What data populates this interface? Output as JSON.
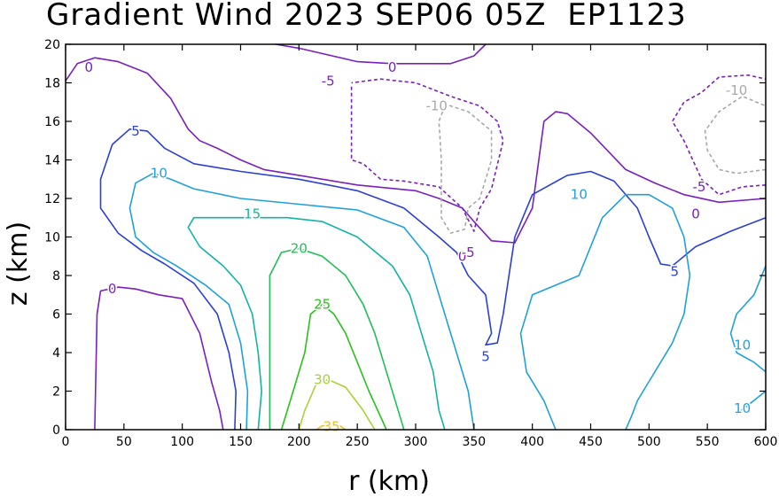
{
  "chart_data": {
    "type": "contour",
    "title": "Gradient Wind 2023 SEP06 05Z  EP1123",
    "xlabel": "r (km)",
    "ylabel": "z (km)",
    "xlim": [
      0,
      600
    ],
    "ylim": [
      0,
      20
    ],
    "x_ticks": [
      0,
      50,
      100,
      150,
      200,
      250,
      300,
      350,
      400,
      450,
      500,
      550,
      600
    ],
    "y_ticks": [
      0,
      2,
      4,
      6,
      8,
      10,
      12,
      14,
      16,
      18,
      20
    ],
    "grid": false,
    "contour_levels": [
      -10,
      -5,
      0,
      5,
      10,
      15,
      20,
      25,
      30,
      35
    ],
    "contours": [
      {
        "level": "0",
        "color": "#7a1fc0",
        "dashed": false,
        "points": [
          [
            0,
            18.1
          ],
          [
            10,
            19
          ],
          [
            25,
            19.3
          ],
          [
            45,
            19.1
          ],
          [
            70,
            18.5
          ],
          [
            90,
            17.2
          ],
          [
            105,
            15.6
          ],
          [
            115,
            15
          ],
          [
            130,
            14.6
          ],
          [
            150,
            14
          ],
          [
            170,
            13.5
          ],
          [
            200,
            13.2
          ],
          [
            250,
            12.7
          ],
          [
            300,
            12.4
          ],
          [
            320,
            12
          ],
          [
            340,
            11.5
          ],
          [
            350,
            10.8
          ],
          [
            365,
            9.8
          ],
          [
            385,
            9.7
          ],
          [
            400,
            11.5
          ],
          [
            410,
            16
          ],
          [
            420,
            16.5
          ],
          [
            430,
            16.4
          ],
          [
            450,
            15.4
          ],
          [
            480,
            13.5
          ],
          [
            505,
            12.8
          ],
          [
            530,
            12.2
          ],
          [
            560,
            11.8
          ],
          [
            600,
            12
          ]
        ]
      },
      {
        "level": "0",
        "color": "#7a1fc0",
        "dashed": false,
        "points": [
          [
            180,
            20
          ],
          [
            200,
            19.8
          ],
          [
            250,
            19.1
          ],
          [
            280,
            19
          ],
          [
            330,
            19
          ],
          [
            350,
            19.4
          ],
          [
            360,
            20
          ]
        ]
      },
      {
        "level": "0",
        "color": "#7a1fc0",
        "dashed": false,
        "points": [
          [
            25,
            0
          ],
          [
            26,
            3
          ],
          [
            27,
            6
          ],
          [
            30,
            7.2
          ],
          [
            45,
            7.4
          ],
          [
            60,
            7.3
          ],
          [
            80,
            7
          ],
          [
            100,
            6.8
          ],
          [
            115,
            5
          ],
          [
            125,
            2.5
          ],
          [
            132,
            1
          ],
          [
            135,
            0
          ]
        ]
      },
      {
        "level": "-5",
        "color": "#7a1fc0",
        "dashed": true,
        "points": [
          [
            245,
            17.8
          ],
          [
            245,
            14
          ],
          [
            255,
            13.8
          ],
          [
            270,
            13
          ],
          [
            290,
            12.9
          ],
          [
            320,
            12.6
          ],
          [
            340,
            11.5
          ],
          [
            350,
            10.3
          ],
          [
            355,
            11.5
          ],
          [
            365,
            12.5
          ],
          [
            375,
            15
          ],
          [
            370,
            16
          ],
          [
            355,
            16.8
          ],
          [
            330,
            17.3
          ],
          [
            300,
            18
          ],
          [
            270,
            18.2
          ],
          [
            245,
            18
          ]
        ]
      },
      {
        "level": "-5",
        "color": "#7a1fc0",
        "dashed": true,
        "points": [
          [
            600,
            12.7
          ],
          [
            580,
            12.6
          ],
          [
            560,
            12.2
          ],
          [
            545,
            13
          ],
          [
            530,
            15
          ],
          [
            520,
            16
          ],
          [
            530,
            17
          ],
          [
            545,
            17.5
          ],
          [
            560,
            18.3
          ],
          [
            585,
            18.4
          ],
          [
            600,
            18.2
          ]
        ]
      },
      {
        "level": "-10",
        "color": "#a8a8a8",
        "dashed": true,
        "points": [
          [
            325,
            16.8
          ],
          [
            320,
            16
          ],
          [
            322,
            14
          ],
          [
            322,
            11
          ],
          [
            330,
            10.2
          ],
          [
            342,
            10.4
          ],
          [
            345,
            11.5
          ],
          [
            355,
            12
          ],
          [
            365,
            14
          ],
          [
            365,
            15.5
          ],
          [
            345,
            16.5
          ],
          [
            325,
            16.9
          ]
        ]
      },
      {
        "level": "-10",
        "color": "#a8a8a8",
        "dashed": true,
        "points": [
          [
            600,
            13.5
          ],
          [
            575,
            13.3
          ],
          [
            560,
            13.5
          ],
          [
            550,
            14.5
          ],
          [
            548,
            15.5
          ],
          [
            560,
            16.5
          ],
          [
            580,
            17.3
          ],
          [
            600,
            16.8
          ]
        ]
      },
      {
        "level": "5",
        "color": "#2a3fd6",
        "dashed": false,
        "points": [
          [
            145,
            0
          ],
          [
            146,
            2
          ],
          [
            140,
            4
          ],
          [
            130,
            6
          ],
          [
            110,
            7.6
          ],
          [
            85,
            8.6
          ],
          [
            65,
            9.3
          ],
          [
            45,
            10.2
          ],
          [
            30,
            11.5
          ],
          [
            30,
            13
          ],
          [
            40,
            14.8
          ],
          [
            55,
            15.6
          ],
          [
            70,
            15.5
          ],
          [
            85,
            14.6
          ],
          [
            110,
            13.8
          ],
          [
            150,
            13.4
          ],
          [
            200,
            13
          ],
          [
            250,
            12.4
          ],
          [
            290,
            11.5
          ],
          [
            320,
            10
          ],
          [
            335,
            9.2
          ],
          [
            345,
            8
          ],
          [
            360,
            7
          ],
          [
            365,
            5
          ],
          [
            360,
            4.4
          ],
          [
            370,
            4.5
          ],
          [
            375,
            6
          ],
          [
            380,
            8
          ],
          [
            385,
            10
          ],
          [
            400,
            12.2
          ],
          [
            430,
            13.2
          ],
          [
            450,
            13.4
          ],
          [
            470,
            12.9
          ],
          [
            490,
            11.5
          ],
          [
            500,
            10
          ],
          [
            510,
            8.6
          ],
          [
            520,
            8.5
          ],
          [
            540,
            9.5
          ],
          [
            570,
            10.3
          ],
          [
            600,
            11
          ]
        ]
      },
      {
        "level": "10",
        "color": "#1fa0de",
        "dashed": false,
        "points": [
          [
            155,
            0
          ],
          [
            156,
            2
          ],
          [
            150,
            4.5
          ],
          [
            140,
            6.5
          ],
          [
            120,
            7.5
          ],
          [
            95,
            8.5
          ],
          [
            75,
            9.2
          ],
          [
            60,
            10
          ],
          [
            55,
            11.5
          ],
          [
            60,
            12.8
          ],
          [
            75,
            13.3
          ],
          [
            90,
            13
          ],
          [
            110,
            12.5
          ],
          [
            150,
            12
          ],
          [
            200,
            11.7
          ],
          [
            250,
            11.4
          ],
          [
            290,
            10.5
          ],
          [
            310,
            9
          ],
          [
            320,
            7
          ],
          [
            330,
            5
          ],
          [
            345,
            2
          ],
          [
            350,
            0
          ]
        ]
      },
      {
        "level": "10",
        "color": "#1fa0de",
        "dashed": false,
        "points": [
          [
            480,
            0
          ],
          [
            485,
            0.7
          ],
          [
            490,
            1.5
          ],
          [
            500,
            2.5
          ],
          [
            510,
            3.5
          ],
          [
            520,
            4.5
          ],
          [
            530,
            6
          ],
          [
            535,
            8
          ],
          [
            530,
            10
          ],
          [
            520,
            11.5
          ],
          [
            500,
            12.2
          ],
          [
            480,
            12.2
          ],
          [
            460,
            11
          ],
          [
            440,
            8
          ],
          [
            420,
            7.5
          ],
          [
            400,
            7
          ],
          [
            390,
            5
          ],
          [
            395,
            3
          ],
          [
            410,
            1.5
          ],
          [
            420,
            0
          ]
        ]
      },
      {
        "level": "10",
        "color": "#1fa0de",
        "dashed": false,
        "points": [
          [
            600,
            8.5
          ],
          [
            590,
            7
          ],
          [
            575,
            6
          ],
          [
            570,
            5
          ],
          [
            575,
            4
          ],
          [
            590,
            3.5
          ],
          [
            600,
            3
          ]
        ]
      },
      {
        "level": "10",
        "color": "#1fa0de",
        "dashed": false,
        "points": [
          [
            575,
            0.8
          ],
          [
            600,
            2
          ]
        ]
      },
      {
        "level": "15",
        "color": "#12b3a5",
        "dashed": false,
        "points": [
          [
            165,
            0
          ],
          [
            168,
            2
          ],
          [
            165,
            4
          ],
          [
            160,
            6
          ],
          [
            150,
            7.5
          ],
          [
            135,
            8.5
          ],
          [
            115,
            9.5
          ],
          [
            105,
            10.5
          ],
          [
            110,
            11
          ],
          [
            130,
            11
          ],
          [
            160,
            11
          ],
          [
            190,
            11
          ],
          [
            220,
            10.8
          ],
          [
            250,
            10
          ],
          [
            280,
            8.5
          ],
          [
            295,
            7
          ],
          [
            305,
            5
          ],
          [
            315,
            3
          ],
          [
            320,
            1
          ],
          [
            325,
            0
          ]
        ]
      },
      {
        "level": "20",
        "color": "#1fbf55",
        "dashed": false,
        "points": [
          [
            175,
            0
          ],
          [
            175,
            2
          ],
          [
            175,
            5
          ],
          [
            175,
            8
          ],
          [
            185,
            9.2
          ],
          [
            200,
            9.4
          ],
          [
            220,
            9
          ],
          [
            240,
            8
          ],
          [
            255,
            6.5
          ],
          [
            265,
            5
          ],
          [
            275,
            3
          ],
          [
            285,
            1
          ],
          [
            290,
            0
          ]
        ]
      },
      {
        "level": "25",
        "color": "#28c21a",
        "dashed": false,
        "points": [
          [
            185,
            0
          ],
          [
            195,
            2
          ],
          [
            205,
            4
          ],
          [
            210,
            6
          ],
          [
            220,
            6.5
          ],
          [
            230,
            6
          ],
          [
            240,
            5
          ],
          [
            250,
            3.5
          ],
          [
            260,
            2
          ],
          [
            275,
            0
          ]
        ]
      },
      {
        "level": "30",
        "color": "#a8d235",
        "dashed": false,
        "points": [
          [
            200,
            0
          ],
          [
            205,
            1
          ],
          [
            215,
            2.4
          ],
          [
            225,
            2.6
          ],
          [
            240,
            2.2
          ],
          [
            255,
            1
          ],
          [
            265,
            0
          ]
        ]
      },
      {
        "level": "35",
        "color": "#e8c22a",
        "dashed": false,
        "points": [
          [
            215,
            0
          ],
          [
            220,
            0.2
          ],
          [
            235,
            0.2
          ],
          [
            240,
            0
          ]
        ]
      }
    ],
    "contour_labels": [
      {
        "text": "0",
        "x": 20,
        "y": 18.8,
        "color": "#7a1fc0"
      },
      {
        "text": "0",
        "x": 280,
        "y": 18.8,
        "color": "#7a1fc0"
      },
      {
        "text": "0",
        "x": 340,
        "y": 9,
        "color": "#7a1fc0"
      },
      {
        "text": "0",
        "x": 540,
        "y": 11.2,
        "color": "#7a1fc0"
      },
      {
        "text": "0",
        "x": 40,
        "y": 7.3,
        "color": "#7a1fc0"
      },
      {
        "text": "-5",
        "x": 225,
        "y": 18.1,
        "color": "#7a1fc0"
      },
      {
        "text": "-5",
        "x": 345,
        "y": 9.2,
        "color": "#7a1fc0"
      },
      {
        "text": "-5",
        "x": 543,
        "y": 12.6,
        "color": "#7a1fc0"
      },
      {
        "text": "-10",
        "x": 318,
        "y": 16.8,
        "color": "#a8a8a8"
      },
      {
        "text": "-10",
        "x": 575,
        "y": 17.6,
        "color": "#a8a8a8"
      },
      {
        "text": "5",
        "x": 60,
        "y": 15.5,
        "color": "#2a3fd6"
      },
      {
        "text": "5",
        "x": 360,
        "y": 3.8,
        "color": "#2a3fd6"
      },
      {
        "text": "5",
        "x": 522,
        "y": 8.2,
        "color": "#2a3fd6"
      },
      {
        "text": "10",
        "x": 80,
        "y": 13.3,
        "color": "#1fa0de"
      },
      {
        "text": "10",
        "x": 440,
        "y": 12.2,
        "color": "#1fa0de"
      },
      {
        "text": "10",
        "x": 580,
        "y": 4.4,
        "color": "#1fa0de"
      },
      {
        "text": "10",
        "x": 580,
        "y": 1.1,
        "color": "#1fa0de"
      },
      {
        "text": "15",
        "x": 160,
        "y": 11.2,
        "color": "#12b3a5"
      },
      {
        "text": "20",
        "x": 200,
        "y": 9.4,
        "color": "#1fbf55"
      },
      {
        "text": "25",
        "x": 220,
        "y": 6.5,
        "color": "#28c21a"
      },
      {
        "text": "30",
        "x": 220,
        "y": 2.6,
        "color": "#a8d235"
      },
      {
        "text": "35",
        "x": 228,
        "y": 0.15,
        "color": "#e8c22a"
      }
    ]
  }
}
